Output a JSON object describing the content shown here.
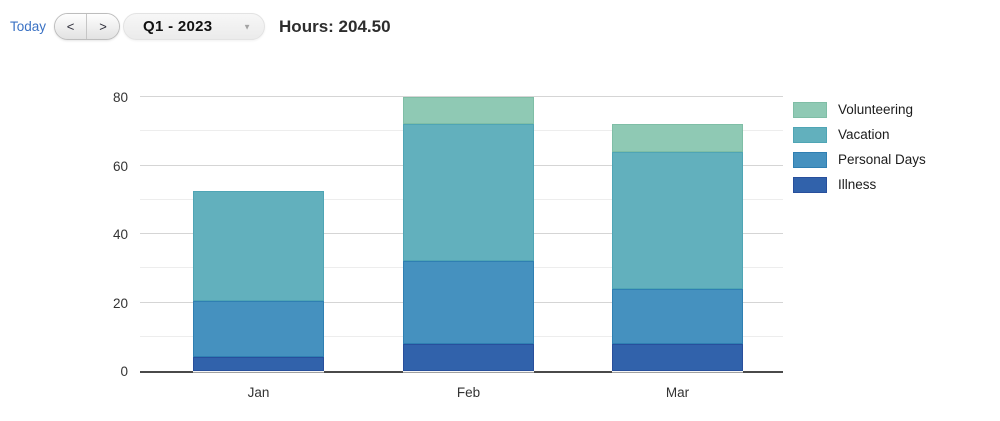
{
  "toolbar": {
    "today_label": "Today",
    "prev_label": "<",
    "next_label": ">",
    "period_value": "Q1 - 2023",
    "hours_label": "Hours:",
    "hours_value": "204.50"
  },
  "chart_data": {
    "type": "bar",
    "stacked": true,
    "title": "",
    "xlabel": "",
    "ylabel": "",
    "categories": [
      "Jan",
      "Feb",
      "Mar"
    ],
    "series": [
      {
        "name": "Illness",
        "color": "#3162AB",
        "border_color": "#284F9C",
        "values": [
          4,
          8,
          8
        ]
      },
      {
        "name": "Personal Days",
        "color": "#4591BF",
        "border_color": "#2F7FB2",
        "values": [
          16.5,
          24,
          16
        ]
      },
      {
        "name": "Vacation",
        "color": "#62B0BD",
        "border_color": "#4FA5B5",
        "values": [
          32,
          40,
          40
        ]
      },
      {
        "name": "Volunteering",
        "color": "#8FC9B4",
        "border_color": "#7FBEA6",
        "values": [
          0,
          8,
          8
        ]
      }
    ],
    "totals": [
      52.5,
      80,
      72
    ],
    "ylim": [
      0,
      80
    ],
    "yticks": [
      0,
      20,
      40,
      60,
      80
    ],
    "minor_ticks": [
      10,
      30,
      50,
      70
    ],
    "grid": true,
    "legend_position": "right",
    "legend_order_top_to_bottom": [
      "Volunteering",
      "Vacation",
      "Personal Days",
      "Illness"
    ]
  }
}
